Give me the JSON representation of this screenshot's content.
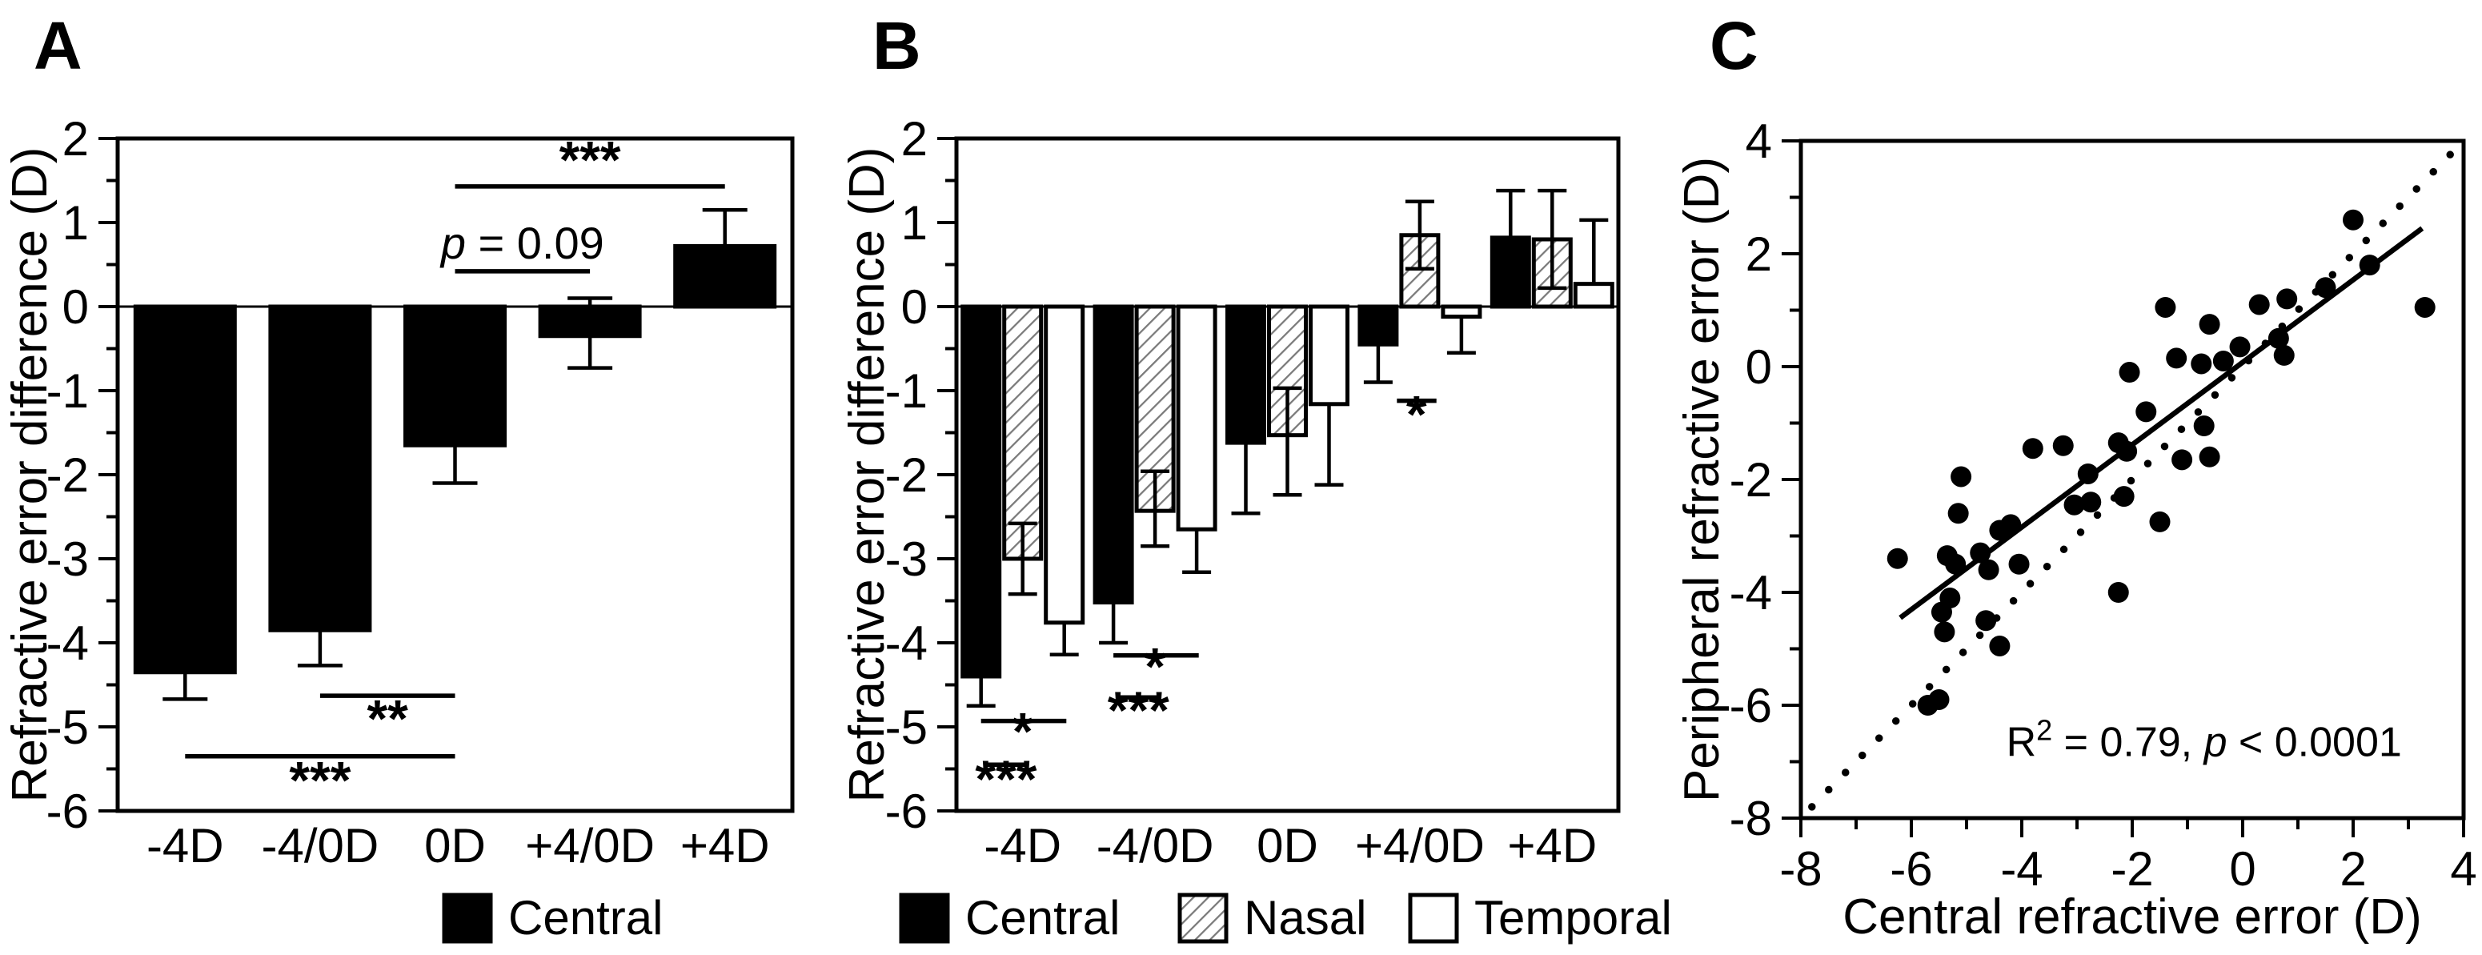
{
  "panels": [
    {
      "label": "A"
    },
    {
      "label": "B"
    },
    {
      "label": "C"
    }
  ],
  "sig_colors": {
    "ink": "#000000",
    "hatch_line": "#7a7a7a",
    "background": "#ffffff"
  },
  "chart_data": [
    {
      "id": "A",
      "type": "bar",
      "title": "",
      "ylabel": "Refractive error difference (D)",
      "ylim": [
        -6,
        2
      ],
      "yticks": [
        2,
        1,
        0,
        -1,
        -2,
        -3,
        -4,
        -5,
        -6
      ],
      "yminor_step": 0.5,
      "grid": false,
      "categories": [
        "-4D",
        "-4/0D",
        "0D",
        "+4/0D",
        "+4D"
      ],
      "series": [
        {
          "name": "Central",
          "fill": "black",
          "values": [
            -4.35,
            -3.85,
            -1.65,
            -0.35,
            0.72
          ],
          "err_up": [
            0,
            0,
            0,
            0.45,
            0.43
          ],
          "err_down": [
            0.32,
            0.42,
            0.45,
            0.38,
            0
          ]
        }
      ],
      "annotations": [
        {
          "y": 1.43,
          "x1": {
            "cat": 2,
            "slot": 0
          },
          "x2": {
            "cat": 4,
            "slot": 0
          },
          "label": [
            {
              "t": "***"
            }
          ],
          "asterisk": true,
          "label_pos": {
            "cat": 3,
            "slot": 0,
            "y": 1.53
          }
        },
        {
          "y": 0.42,
          "x1": {
            "cat": 2,
            "slot": 0
          },
          "x2": {
            "cat": 3,
            "slot": 0
          },
          "label": [
            {
              "t": "p",
              "italic": true
            },
            {
              "t": " = 0.09"
            }
          ],
          "asterisk": false,
          "label_pos": {
            "cat": 2.5,
            "slot": 0,
            "y": 0.57
          }
        },
        {
          "y": -4.63,
          "x1": {
            "cat": 1,
            "slot": 0
          },
          "x2": {
            "cat": 2,
            "slot": 0
          },
          "label": [
            {
              "t": "**"
            }
          ],
          "asterisk": true,
          "label_pos": {
            "cat": 1.5,
            "slot": 0,
            "y": -5.12
          }
        },
        {
          "y": -5.35,
          "x1": {
            "cat": 0,
            "slot": 0
          },
          "x2": {
            "cat": 2,
            "slot": 0
          },
          "label": [
            {
              "t": "***"
            }
          ],
          "asterisk": true,
          "label_pos": {
            "cat": 1,
            "slot": 0,
            "y": -5.85
          }
        }
      ]
    },
    {
      "id": "B",
      "type": "bar",
      "title": "",
      "ylabel": "Refractive error difference (D)",
      "ylim": [
        -6,
        2
      ],
      "yticks": [
        2,
        1,
        0,
        -1,
        -2,
        -3,
        -4,
        -5,
        -6
      ],
      "yminor_step": 0.5,
      "grid": false,
      "categories": [
        "-4D",
        "-4/0D",
        "0D",
        "+4/0D",
        "+4D"
      ],
      "series": [
        {
          "name": "Central",
          "fill": "black",
          "values": [
            -4.4,
            -3.52,
            -1.62,
            -0.45,
            0.82
          ],
          "err_up": [
            0,
            0,
            0,
            0,
            0.56
          ],
          "err_down": [
            0.35,
            0.48,
            0.84,
            0.45,
            0
          ]
        },
        {
          "name": "Nasal",
          "fill": "hatch",
          "values": [
            -3.0,
            -2.43,
            -1.53,
            0.85,
            0.8
          ],
          "err_up": [
            0.42,
            0.47,
            0.56,
            0.4,
            0.58
          ],
          "err_down": [
            0.42,
            0.42,
            0.71,
            0.4,
            0.58
          ]
        },
        {
          "name": "Temporal",
          "fill": "white",
          "values": [
            -3.76,
            -2.65,
            -1.16,
            -0.12,
            0.27
          ],
          "err_up": [
            0,
            0,
            0,
            0,
            0.76
          ],
          "err_down": [
            0.38,
            0.51,
            0.96,
            0.43,
            0
          ]
        }
      ],
      "annotations": [
        {
          "y": -4.93,
          "x1": {
            "cat": 0,
            "slot": -1
          },
          "x2": {
            "cat": 0,
            "slot": 1.05
          },
          "label": [
            {
              "t": "*"
            }
          ],
          "asterisk": true,
          "label_pos": {
            "cat": 0,
            "slot": 0,
            "y": -5.27
          }
        },
        {
          "y": -5.45,
          "x1": {
            "cat": 0,
            "slot": -0.9
          },
          "x2": {
            "cat": 0,
            "slot": 0.1
          },
          "label": [
            {
              "t": "***"
            }
          ],
          "asterisk": true,
          "label_pos": {
            "cat": 0,
            "slot": -0.4,
            "y": -5.84
          }
        },
        {
          "y": -4.15,
          "x1": {
            "cat": 1,
            "slot": -1
          },
          "x2": {
            "cat": 1,
            "slot": 1.05
          },
          "label": [
            {
              "t": "*"
            }
          ],
          "asterisk": true,
          "label_pos": {
            "cat": 1,
            "slot": 0,
            "y": -4.5
          }
        },
        {
          "y": -4.65,
          "x1": {
            "cat": 1,
            "slot": -0.9
          },
          "x2": {
            "cat": 1,
            "slot": 0.1
          },
          "label": [
            {
              "t": "***"
            }
          ],
          "asterisk": true,
          "label_pos": {
            "cat": 1,
            "slot": -0.4,
            "y": -5.02
          }
        },
        {
          "y": -1.12,
          "x1": {
            "cat": 3,
            "slot": -0.55
          },
          "x2": {
            "cat": 3,
            "slot": 0.4
          },
          "label": [
            {
              "t": "*"
            }
          ],
          "asterisk": true,
          "label_pos": {
            "cat": 3,
            "slot": -0.08,
            "y": -1.5
          }
        }
      ]
    },
    {
      "id": "C",
      "type": "scatter",
      "title": "",
      "xlabel": "Central refractive error (D)",
      "ylabel": "Peripheral refractive error (D)",
      "xlim": [
        -8,
        4
      ],
      "ylim": [
        -8,
        4
      ],
      "xticks": [
        -8,
        -6,
        -4,
        -2,
        0,
        2,
        4
      ],
      "yticks": [
        4,
        2,
        0,
        -2,
        -4,
        -6,
        -8
      ],
      "minor_step": 1,
      "grid": false,
      "points": [
        [
          -6.25,
          -3.4
        ],
        [
          -5.7,
          -6.0
        ],
        [
          -5.5,
          -5.9
        ],
        [
          -5.35,
          -3.35
        ],
        [
          -5.2,
          -3.5
        ],
        [
          -5.1,
          -1.95
        ],
        [
          -5.15,
          -2.6
        ],
        [
          -5.3,
          -4.1
        ],
        [
          -5.45,
          -4.35
        ],
        [
          -5.4,
          -4.7
        ],
        [
          -4.65,
          -4.5
        ],
        [
          -4.4,
          -4.95
        ],
        [
          -4.6,
          -3.6
        ],
        [
          -4.75,
          -3.3
        ],
        [
          -4.4,
          -2.9
        ],
        [
          -4.2,
          -2.8
        ],
        [
          -4.05,
          -3.5
        ],
        [
          -3.8,
          -1.45
        ],
        [
          -3.25,
          -1.4
        ],
        [
          -3.05,
          -2.45
        ],
        [
          -2.75,
          -2.4
        ],
        [
          -2.8,
          -1.9
        ],
        [
          -2.25,
          -1.35
        ],
        [
          -2.1,
          -1.5
        ],
        [
          -2.15,
          -2.3
        ],
        [
          -2.05,
          -0.1
        ],
        [
          -2.25,
          -4.0
        ],
        [
          -1.75,
          -0.8
        ],
        [
          -1.5,
          -2.75
        ],
        [
          -1.4,
          1.05
        ],
        [
          -1.2,
          0.15
        ],
        [
          -1.1,
          -1.65
        ],
        [
          -0.75,
          0.05
        ],
        [
          -0.6,
          0.75
        ],
        [
          -0.7,
          -1.05
        ],
        [
          -0.6,
          -1.6
        ],
        [
          -0.35,
          0.1
        ],
        [
          -0.05,
          0.35
        ],
        [
          0.3,
          1.1
        ],
        [
          0.65,
          0.5
        ],
        [
          0.8,
          1.2
        ],
        [
          0.75,
          0.2
        ],
        [
          1.5,
          1.4
        ],
        [
          2.0,
          2.6
        ],
        [
          2.3,
          1.8
        ],
        [
          3.3,
          1.05
        ]
      ],
      "regression_line": {
        "style": "solid",
        "x1": -6.2,
        "y1": -4.45,
        "x2": 3.25,
        "y2": 2.45
      },
      "identity_line": {
        "style": "dotted",
        "x1": -7.8,
        "y1": -7.8,
        "x2": 3.95,
        "y2": 3.95
      },
      "annotation": {
        "x": -0.7,
        "y": -6.9,
        "parts": [
          {
            "t": "R"
          },
          {
            "t": "2",
            "sup": true
          },
          {
            "t": " = 0.79, "
          },
          {
            "t": "p",
            "italic": true
          },
          {
            "t": " < 0.0001"
          }
        ]
      },
      "stats": {
        "r_squared": "0.79",
        "p_value": "< 0.0001"
      }
    }
  ]
}
